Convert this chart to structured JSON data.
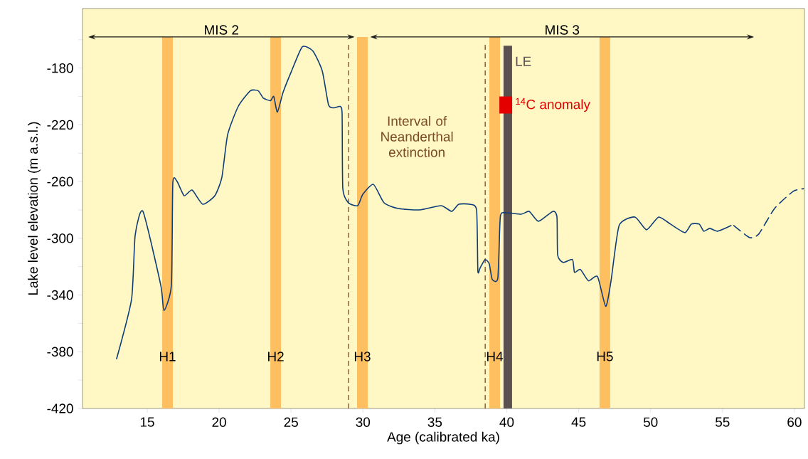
{
  "chart_data": {
    "type": "line",
    "xlabel": "Age (calibrated ka)",
    "ylabel": "Lake level elevation (m a.s.l.)",
    "xlim": [
      10.5,
      60.7
    ],
    "ylim": [
      -420,
      -138
    ],
    "xticks": [
      15,
      20,
      25,
      30,
      35,
      40,
      45,
      50,
      55,
      60
    ],
    "yticks": [
      {
        "value": -420,
        "label": "-420"
      },
      {
        "value": -400,
        "label": null
      },
      {
        "value": -380,
        "label": "-380"
      },
      {
        "value": -360,
        "label": null
      },
      {
        "value": -340,
        "label": "-340"
      },
      {
        "value": -320,
        "label": null
      },
      {
        "value": -300,
        "label": "-300"
      },
      {
        "value": -280,
        "label": null
      },
      {
        "value": -260,
        "label": "-260"
      },
      {
        "value": -240,
        "label": null
      },
      {
        "value": -220,
        "label": "-220"
      },
      {
        "value": -200,
        "label": null
      },
      {
        "value": -180,
        "label": "-180"
      },
      {
        "value": -160,
        "label": null
      }
    ],
    "series": [
      {
        "color": "#0d3c78",
        "line_style": "solid",
        "x": [
          12.87,
          13.91,
          14.16,
          14.7,
          15.94,
          16.16,
          16.68,
          16.78,
          17.08,
          17.57,
          18.12,
          18.86,
          19.7,
          20.19,
          20.59,
          21.33,
          22.17,
          22.72,
          23.06,
          23.56,
          23.8,
          24.05,
          24.45,
          25.04,
          25.78,
          26.52,
          27.17,
          27.61,
          28.0,
          28.4,
          28.55,
          28.6,
          28.99,
          29.64,
          29.99,
          30.73,
          31.47,
          32.46,
          33.94,
          35.43,
          36.17,
          36.66,
          37.4,
          37.9,
          37.99,
          38.14,
          38.49,
          38.78,
          38.99,
          39.38,
          39.55,
          39.91,
          41.01,
          41.56,
          42.2,
          43.21,
          43.49,
          43.54,
          43.93,
          44.57,
          44.71,
          45.12,
          45.68,
          46.31,
          46.88,
          47.25,
          47.81,
          48.91,
          49.72,
          50.56,
          51.38,
          52.39,
          52.83,
          53.38,
          53.7,
          54.12,
          54.66,
          55.59
        ],
        "values": [
          -385,
          -343,
          -298,
          -281,
          -333,
          -351,
          -333,
          -261,
          -260,
          -270,
          -266,
          -276,
          -270,
          -257,
          -227,
          -207,
          -196,
          -196,
          -201,
          -203,
          -200,
          -211,
          -197,
          -182,
          -165,
          -168,
          -182,
          -206,
          -208,
          -207,
          -212,
          -265,
          -275,
          -277,
          -269,
          -262,
          -275,
          -279,
          -280,
          -277,
          -281,
          -276,
          -276,
          -280,
          -323,
          -321,
          -315,
          -318,
          -329,
          -328,
          -285,
          -282,
          -283,
          -281,
          -288,
          -281,
          -285,
          -312,
          -317,
          -315,
          -324,
          -322,
          -330,
          -327,
          -348,
          -330,
          -291,
          -285,
          -294,
          -285,
          -290,
          -296,
          -290,
          -290,
          -295,
          -293,
          -295,
          -291
        ]
      },
      {
        "color": "#0d3c78",
        "line_style": "dashed",
        "x": [
          55.78,
          56.88,
          57.52,
          58.62,
          59.9,
          60.63
        ],
        "values": [
          -291,
          -299.5,
          -297,
          -279,
          -267,
          -265
        ]
      }
    ],
    "bands": [
      {
        "axis": "x",
        "from": 16.04,
        "to": 16.78,
        "label": "H1",
        "color": "#fdbf60"
      },
      {
        "axis": "x",
        "from": 23.56,
        "to": 24.3,
        "label": "H2",
        "color": "#fdbf60"
      },
      {
        "axis": "x",
        "from": 29.59,
        "to": 30.33,
        "label": "H3",
        "color": "#fdbf60"
      },
      {
        "axis": "x",
        "from": 38.79,
        "to": 39.53,
        "label": "H4",
        "color": "#fdbf60"
      },
      {
        "axis": "x",
        "from": 46.45,
        "to": 47.19,
        "label": "H5",
        "color": "#fdbf60"
      }
    ],
    "ref_lines": [
      {
        "axis": "x",
        "value": 40.07,
        "label": "LE",
        "color": "#5a5050",
        "line_style": "solid"
      },
      {
        "axis": "x",
        "value": 29.0,
        "color": "#7b4a26",
        "line_style": "dashed"
      },
      {
        "axis": "x",
        "value": 38.5,
        "color": "#7b4a26",
        "line_style": "dashed"
      }
    ],
    "annotations": [
      {
        "text": "$^{14}$C anomaly",
        "x": 39.93,
        "y": -206
      },
      "MIS 2",
      "MIS 3",
      "Interval of Neanderthal extinction"
    ]
  }
}
